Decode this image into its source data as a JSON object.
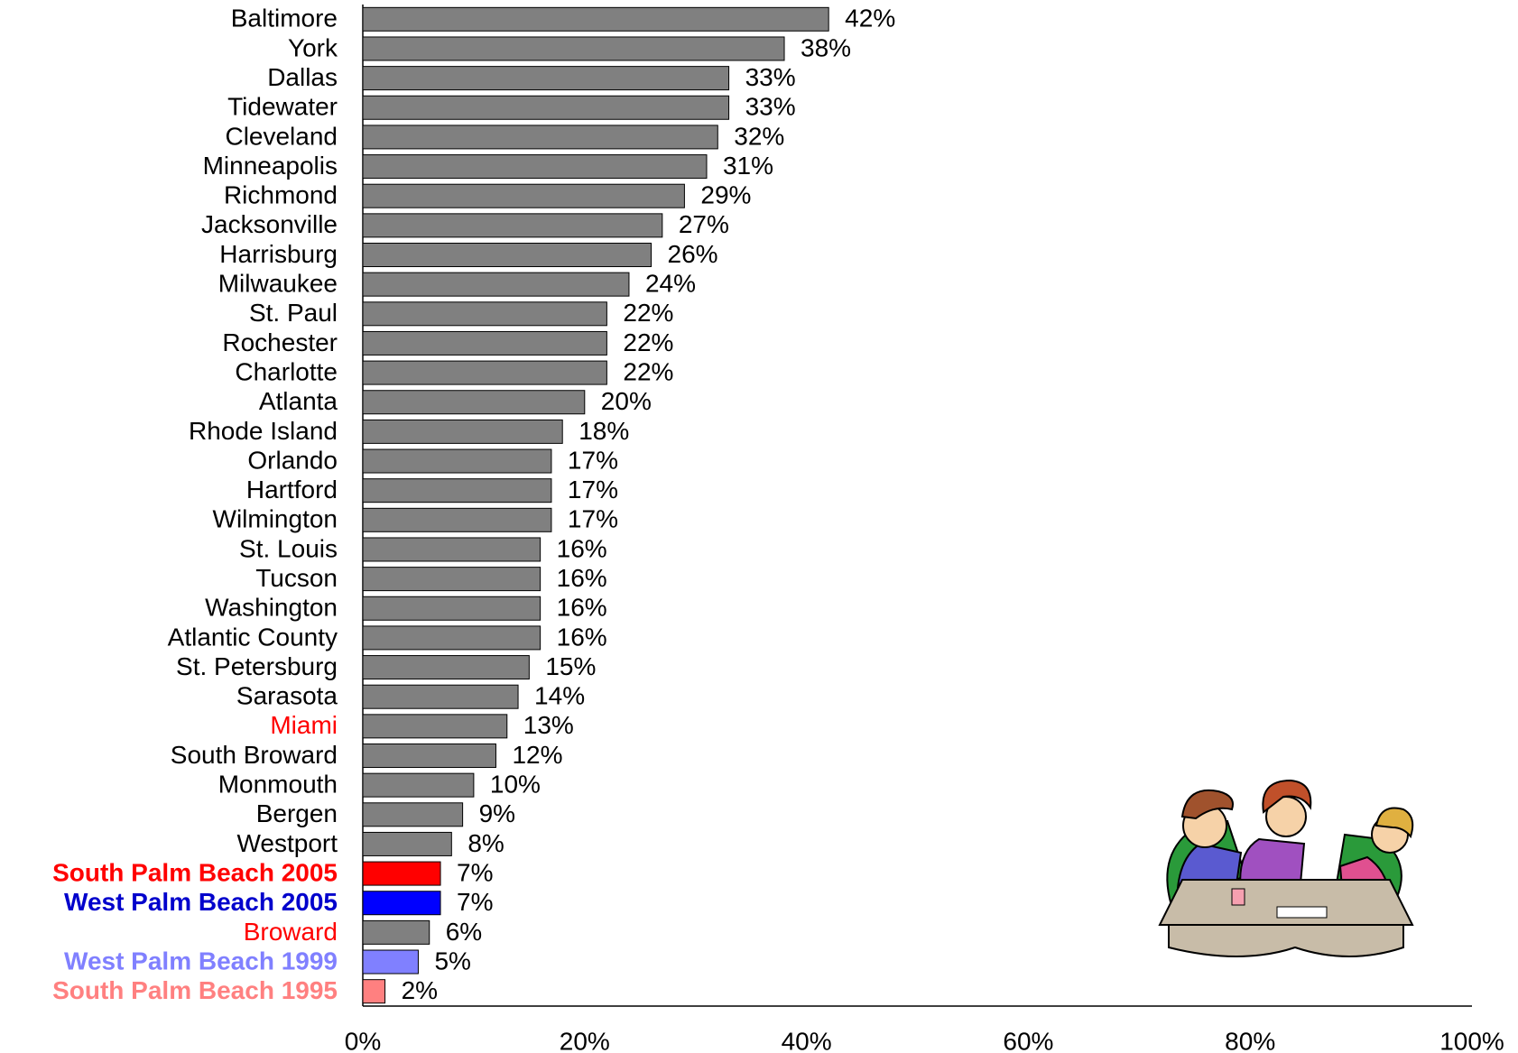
{
  "chart_data": {
    "type": "barh",
    "categories": [
      "Baltimore",
      "York",
      "Dallas",
      "Tidewater",
      "Cleveland",
      "Minneapolis",
      "Richmond",
      "Jacksonville",
      "Harrisburg",
      "Milwaukee",
      "St. Paul",
      "Rochester",
      "Charlotte",
      "Atlanta",
      "Rhode Island",
      "Orlando",
      "Hartford",
      "Wilmington",
      "St. Louis",
      "Tucson",
      "Washington",
      "Atlantic County",
      "St. Petersburg",
      "Sarasota",
      "Miami",
      "South Broward",
      "Monmouth",
      "Bergen",
      "Westport",
      "South Palm Beach 2005",
      "West Palm Beach 2005",
      "Broward",
      "West Palm Beach 1999",
      "South Palm Beach 1995"
    ],
    "values": [
      42,
      38,
      33,
      33,
      32,
      31,
      29,
      27,
      26,
      24,
      22,
      22,
      22,
      20,
      18,
      17,
      17,
      17,
      16,
      16,
      16,
      16,
      15,
      14,
      13,
      12,
      10,
      9,
      8,
      7,
      7,
      6,
      5,
      2
    ],
    "value_labels": [
      "42%",
      "38%",
      "33%",
      "33%",
      "32%",
      "31%",
      "29%",
      "27%",
      "26%",
      "24%",
      "22%",
      "22%",
      "22%",
      "20%",
      "18%",
      "17%",
      "17%",
      "17%",
      "16%",
      "16%",
      "16%",
      "16%",
      "15%",
      "14%",
      "13%",
      "12%",
      "10%",
      "9%",
      "8%",
      "7%",
      "7%",
      "6%",
      "5%",
      "2%"
    ],
    "bar_colors": [
      "#808080",
      "#808080",
      "#808080",
      "#808080",
      "#808080",
      "#808080",
      "#808080",
      "#808080",
      "#808080",
      "#808080",
      "#808080",
      "#808080",
      "#808080",
      "#808080",
      "#808080",
      "#808080",
      "#808080",
      "#808080",
      "#808080",
      "#808080",
      "#808080",
      "#808080",
      "#808080",
      "#808080",
      "#808080",
      "#808080",
      "#808080",
      "#808080",
      "#808080",
      "#ff0000",
      "#0000ff",
      "#808080",
      "#8080ff",
      "#ff8080"
    ],
    "label_colors": [
      "#000000",
      "#000000",
      "#000000",
      "#000000",
      "#000000",
      "#000000",
      "#000000",
      "#000000",
      "#000000",
      "#000000",
      "#000000",
      "#000000",
      "#000000",
      "#000000",
      "#000000",
      "#000000",
      "#000000",
      "#000000",
      "#000000",
      "#000000",
      "#000000",
      "#000000",
      "#000000",
      "#000000",
      "#ff0000",
      "#000000",
      "#000000",
      "#000000",
      "#000000",
      "#ff0000",
      "#0000cc",
      "#ff0000",
      "#8080ff",
      "#ff8080"
    ],
    "bold_labels": [
      false,
      false,
      false,
      false,
      false,
      false,
      false,
      false,
      false,
      false,
      false,
      false,
      false,
      false,
      false,
      false,
      false,
      false,
      false,
      false,
      false,
      false,
      false,
      false,
      false,
      false,
      false,
      false,
      false,
      true,
      true,
      false,
      true,
      true
    ],
    "xlim": [
      0,
      100
    ],
    "xticks": [
      {
        "value": 0,
        "label": "0%"
      },
      {
        "value": 20,
        "label": "20%"
      },
      {
        "value": 40,
        "label": "40%"
      },
      {
        "value": 60,
        "label": "60%"
      },
      {
        "value": 80,
        "label": "80%"
      },
      {
        "value": 100,
        "label": "100%"
      }
    ],
    "grid": false
  }
}
